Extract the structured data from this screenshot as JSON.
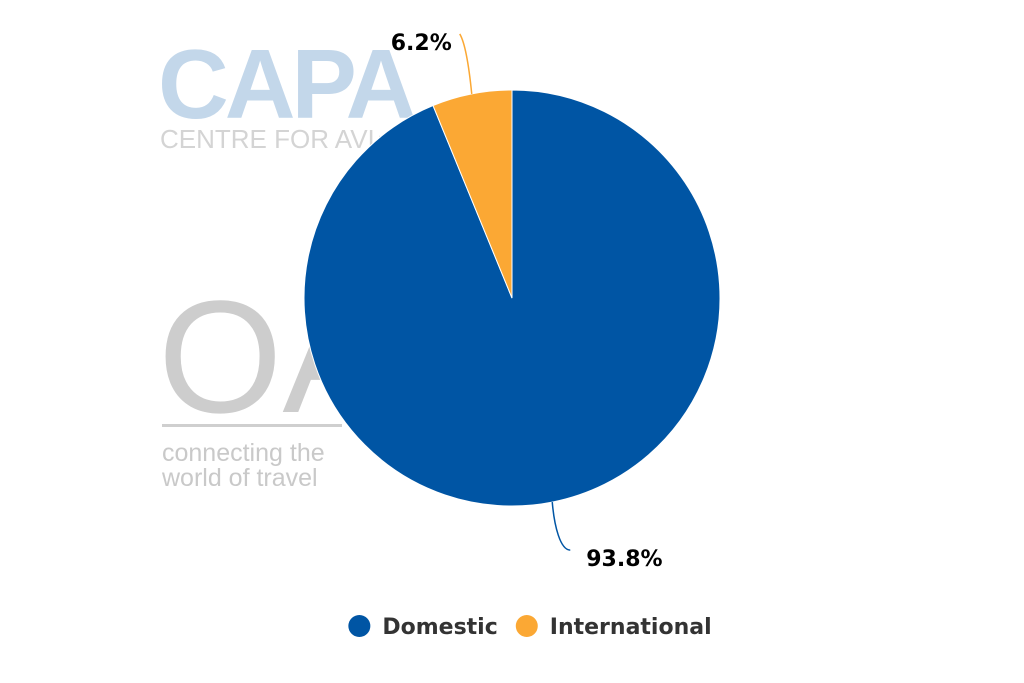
{
  "watermarks": {
    "capa_main": "CAPA",
    "capa_sub": "CENTRE FOR AVIATION",
    "oag_main": "OAG",
    "oag_tagline_1": "connecting the",
    "oag_tagline_2": "world of travel"
  },
  "chart_data": {
    "type": "pie",
    "title": "",
    "slices": [
      {
        "name": "Domestic",
        "value": 93.8,
        "label": "93.8%",
        "color": "#0055a4"
      },
      {
        "name": "International",
        "value": 6.2,
        "label": "6.2%",
        "color": "#fba834"
      }
    ],
    "legend": {
      "placement": "bottom-center",
      "entries": [
        "Domestic",
        "International"
      ]
    }
  }
}
